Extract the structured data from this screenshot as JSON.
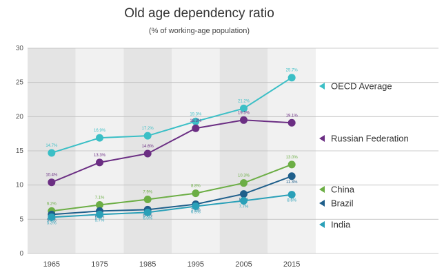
{
  "chart_data": {
    "type": "line",
    "title": "Old age dependency ratio",
    "subtitle": "(% of working-age population)",
    "x": [
      "1965",
      "1975",
      "1985",
      "1995",
      "2005",
      "2015"
    ],
    "ylim": [
      0,
      30
    ],
    "yticks": [
      0,
      5,
      10,
      15,
      20,
      25,
      30
    ],
    "grid": true,
    "legend_position": "right",
    "series": [
      {
        "name": "OECD Average",
        "color": "#3bbfc6",
        "values": [
          14.7,
          16.9,
          17.2,
          19.3,
          21.2,
          25.7
        ],
        "labels": [
          "14.7%",
          "16.9%",
          "17.2%",
          "19.3%",
          "21.2%",
          "25.7%"
        ]
      },
      {
        "name": "Russian Federation",
        "color": "#6b2e83",
        "values": [
          10.4,
          13.3,
          14.6,
          18.3,
          19.5,
          19.1
        ],
        "labels": [
          "10.4%",
          "13.3%",
          "14.6%",
          "18.3%",
          "19.5%",
          "19.1%"
        ]
      },
      {
        "name": "China",
        "color": "#6cae45",
        "values": [
          6.2,
          7.1,
          7.9,
          8.8,
          10.3,
          13.0
        ],
        "labels": [
          "6.2%",
          "7.1%",
          "7.9%",
          "8.8%",
          "10.3%",
          "13.0%"
        ]
      },
      {
        "name": "Brazil",
        "color": "#1f5f8b",
        "values": [
          5.7,
          6.2,
          6.4,
          7.2,
          8.7,
          11.3
        ],
        "labels": [
          "5.7%",
          "6.2%",
          "6.4%",
          "7.2%",
          "8.7%",
          "11.3%"
        ]
      },
      {
        "name": "India",
        "color": "#2aa0b8",
        "values": [
          5.3,
          5.7,
          6.0,
          6.9,
          7.7,
          8.6
        ],
        "labels": [
          "5.3%",
          "5.7%",
          "6.0%",
          "6.9%",
          "7.7%",
          "8.6%"
        ]
      }
    ]
  }
}
